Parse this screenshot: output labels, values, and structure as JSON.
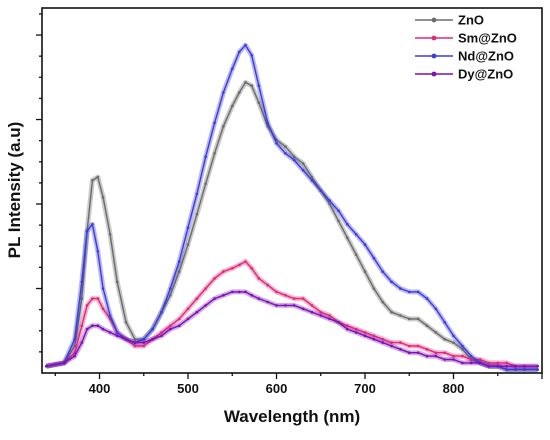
{
  "chart_data": {
    "type": "line",
    "xlabel": "Wavelength (nm)",
    "ylabel": "PL Intensity (a.u)",
    "xlim": [
      335,
      900
    ],
    "ylim": [
      0,
      1.08
    ],
    "x_ticks": [
      400,
      500,
      600,
      700,
      800
    ],
    "y_ticks_labeled": false,
    "legend_position": "top-right",
    "grid": false,
    "series": [
      {
        "name": "ZnO",
        "color": "#6b6b6b",
        "x": [
          340,
          360,
          372,
          380,
          386,
          392,
          398,
          404,
          412,
          420,
          430,
          440,
          450,
          460,
          470,
          480,
          490,
          500,
          510,
          520,
          530,
          540,
          550,
          558,
          565,
          572,
          580,
          590,
          600,
          610,
          620,
          630,
          640,
          650,
          660,
          670,
          680,
          690,
          700,
          710,
          720,
          730,
          740,
          750,
          760,
          770,
          780,
          790,
          800,
          810,
          820,
          830,
          840,
          850,
          860,
          870,
          880,
          895
        ],
        "values": [
          0.02,
          0.03,
          0.08,
          0.22,
          0.42,
          0.57,
          0.58,
          0.52,
          0.41,
          0.27,
          0.15,
          0.1,
          0.1,
          0.13,
          0.18,
          0.23,
          0.3,
          0.38,
          0.47,
          0.56,
          0.65,
          0.73,
          0.79,
          0.83,
          0.86,
          0.85,
          0.8,
          0.73,
          0.69,
          0.67,
          0.64,
          0.62,
          0.58,
          0.54,
          0.5,
          0.45,
          0.4,
          0.35,
          0.3,
          0.25,
          0.21,
          0.18,
          0.17,
          0.16,
          0.16,
          0.14,
          0.12,
          0.1,
          0.09,
          0.07,
          0.04,
          0.03,
          0.02,
          0.02,
          0.01,
          0.01,
          0.01,
          0.01
        ]
      },
      {
        "name": "Sm@ZnO",
        "color": "#e0287a",
        "x": [
          340,
          360,
          372,
          380,
          386,
          392,
          398,
          404,
          412,
          420,
          430,
          440,
          450,
          460,
          470,
          480,
          490,
          500,
          510,
          520,
          530,
          540,
          550,
          558,
          565,
          572,
          580,
          590,
          600,
          610,
          620,
          630,
          640,
          650,
          660,
          670,
          680,
          690,
          700,
          710,
          720,
          730,
          740,
          750,
          760,
          770,
          780,
          790,
          800,
          810,
          820,
          830,
          840,
          850,
          860,
          870,
          880,
          895
        ],
        "values": [
          0.02,
          0.03,
          0.06,
          0.14,
          0.2,
          0.22,
          0.22,
          0.19,
          0.16,
          0.12,
          0.1,
          0.08,
          0.08,
          0.1,
          0.12,
          0.14,
          0.16,
          0.19,
          0.22,
          0.25,
          0.28,
          0.3,
          0.31,
          0.32,
          0.33,
          0.31,
          0.28,
          0.26,
          0.24,
          0.23,
          0.22,
          0.22,
          0.2,
          0.18,
          0.17,
          0.15,
          0.14,
          0.13,
          0.12,
          0.11,
          0.1,
          0.09,
          0.09,
          0.08,
          0.08,
          0.07,
          0.06,
          0.06,
          0.05,
          0.05,
          0.04,
          0.04,
          0.03,
          0.03,
          0.03,
          0.02,
          0.02,
          0.02
        ]
      },
      {
        "name": "Nd@ZnO",
        "color": "#3b3bdb",
        "x": [
          340,
          360,
          372,
          380,
          386,
          392,
          398,
          404,
          412,
          420,
          430,
          440,
          450,
          460,
          470,
          480,
          490,
          500,
          510,
          520,
          530,
          540,
          550,
          558,
          565,
          572,
          580,
          590,
          600,
          610,
          620,
          630,
          640,
          650,
          660,
          670,
          680,
          690,
          700,
          710,
          720,
          730,
          740,
          750,
          760,
          770,
          780,
          790,
          800,
          810,
          820,
          830,
          840,
          850,
          860,
          870,
          880,
          895
        ],
        "values": [
          0.02,
          0.03,
          0.1,
          0.27,
          0.42,
          0.44,
          0.36,
          0.25,
          0.17,
          0.12,
          0.1,
          0.09,
          0.1,
          0.13,
          0.18,
          0.25,
          0.33,
          0.43,
          0.53,
          0.64,
          0.74,
          0.83,
          0.9,
          0.95,
          0.97,
          0.94,
          0.85,
          0.74,
          0.68,
          0.65,
          0.63,
          0.6,
          0.57,
          0.54,
          0.51,
          0.48,
          0.44,
          0.41,
          0.38,
          0.34,
          0.3,
          0.27,
          0.25,
          0.24,
          0.24,
          0.22,
          0.19,
          0.15,
          0.11,
          0.08,
          0.05,
          0.03,
          0.02,
          0.02,
          0.01,
          0.01,
          0.01,
          0.01
        ]
      },
      {
        "name": "Dy@ZnO",
        "color": "#7d0fb5",
        "x": [
          340,
          360,
          372,
          380,
          386,
          392,
          398,
          404,
          412,
          420,
          430,
          440,
          450,
          460,
          470,
          480,
          490,
          500,
          510,
          520,
          530,
          540,
          550,
          558,
          565,
          572,
          580,
          590,
          600,
          610,
          620,
          630,
          640,
          650,
          660,
          670,
          680,
          690,
          700,
          710,
          720,
          730,
          740,
          750,
          760,
          770,
          780,
          790,
          800,
          810,
          820,
          830,
          840,
          850,
          860,
          870,
          880,
          895
        ],
        "values": [
          0.02,
          0.03,
          0.05,
          0.09,
          0.13,
          0.14,
          0.14,
          0.13,
          0.12,
          0.11,
          0.1,
          0.09,
          0.09,
          0.1,
          0.11,
          0.13,
          0.14,
          0.16,
          0.18,
          0.2,
          0.22,
          0.23,
          0.24,
          0.24,
          0.24,
          0.23,
          0.22,
          0.21,
          0.2,
          0.2,
          0.2,
          0.19,
          0.18,
          0.17,
          0.16,
          0.15,
          0.13,
          0.12,
          0.11,
          0.1,
          0.09,
          0.08,
          0.07,
          0.06,
          0.06,
          0.05,
          0.05,
          0.04,
          0.04,
          0.03,
          0.03,
          0.03,
          0.02,
          0.02,
          0.02,
          0.02,
          0.02,
          0.02
        ]
      }
    ]
  }
}
